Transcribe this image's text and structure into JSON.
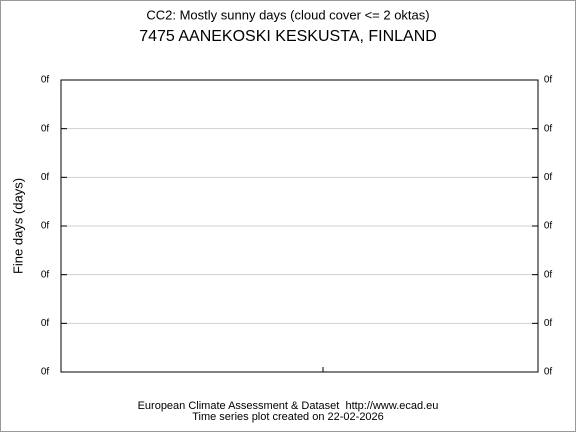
{
  "chart_data": {
    "type": "line",
    "title": "CC2: Mostly sunny days (cloud cover <= 2 oktas)",
    "subtitle": "7475 AANEKOSKI KESKUSTA, FINLAND",
    "y_label": "Fine days (days)",
    "series": [],
    "ylim": [
      0,
      6
    ],
    "yticks": [
      {
        "value": 0,
        "label": "0f"
      },
      {
        "value": 1,
        "label": "0f"
      },
      {
        "value": 2,
        "label": "0f"
      },
      {
        "value": 3,
        "label": "0f"
      },
      {
        "value": 4,
        "label": "0f"
      },
      {
        "value": 5,
        "label": "0f"
      },
      {
        "value": 6,
        "label": "0f"
      }
    ],
    "y2lim": [
      0,
      6
    ],
    "y2ticks": [
      {
        "value": 0,
        "label": "0f"
      },
      {
        "value": 1,
        "label": "0f"
      },
      {
        "value": 2,
        "label": "0f"
      },
      {
        "value": 3,
        "label": "0f"
      },
      {
        "value": 4,
        "label": "0f"
      },
      {
        "value": 5,
        "label": "0f"
      },
      {
        "value": 6,
        "label": "0f"
      }
    ],
    "grid": true,
    "footer": [
      "European Climate Assessment & Dataset  http://www.ecad.eu",
      "Time series plot created on 22-02-2026"
    ]
  }
}
